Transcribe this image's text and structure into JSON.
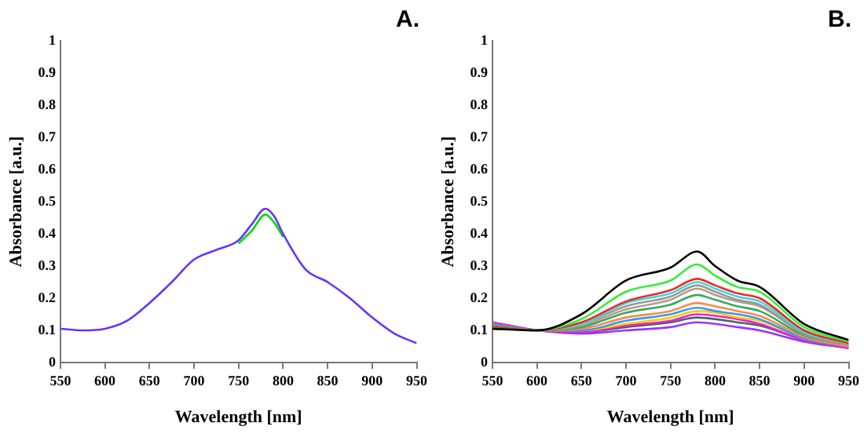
{
  "chart_data": [
    {
      "type": "line",
      "title": "A.",
      "xlabel": "Wavelength [nm]",
      "ylabel": "Absorbance [a.u.]",
      "x": [
        550,
        575,
        600,
        625,
        650,
        675,
        700,
        725,
        750,
        765,
        780,
        790,
        800,
        825,
        850,
        875,
        900,
        925,
        950
      ],
      "xlim": [
        550,
        950
      ],
      "xticks": [
        550,
        600,
        650,
        700,
        750,
        800,
        850,
        900,
        950
      ],
      "ylim": [
        0,
        1
      ],
      "yticks": [
        0,
        0.1,
        0.2,
        0.3,
        0.4,
        0.5,
        0.6,
        0.7,
        0.8,
        0.9,
        1
      ],
      "grid": false,
      "legend": false,
      "marker": "none",
      "line_style": "solid",
      "series": [
        {
          "color": "#6633ff",
          "values": [
            0.105,
            0.1,
            0.105,
            0.13,
            0.185,
            0.25,
            0.32,
            0.35,
            0.38,
            0.43,
            0.478,
            0.455,
            0.4,
            0.29,
            0.25,
            0.2,
            0.14,
            0.09,
            0.06
          ]
        },
        {
          "color": "#00dd00",
          "values": [
            null,
            null,
            null,
            null,
            null,
            null,
            null,
            null,
            0.37,
            0.41,
            0.46,
            0.435,
            0.39,
            null,
            null,
            null,
            null,
            null,
            null
          ]
        }
      ]
    },
    {
      "type": "line",
      "title": "B.",
      "xlabel": "Wavelength [nm]",
      "ylabel": "Absorbance [a.u.]",
      "x": [
        550,
        600,
        650,
        700,
        750,
        780,
        800,
        825,
        850,
        900,
        950
      ],
      "xlim": [
        550,
        950
      ],
      "xticks": [
        550,
        600,
        650,
        700,
        750,
        800,
        850,
        900,
        950
      ],
      "ylim": [
        0,
        1
      ],
      "yticks": [
        0,
        0.1,
        0.2,
        0.3,
        0.4,
        0.5,
        0.6,
        0.7,
        0.8,
        0.9,
        1
      ],
      "grid": false,
      "legend": false,
      "marker": "none",
      "line_style": "solid",
      "series": [
        {
          "color": "#000000",
          "values": [
            0.105,
            0.1,
            0.15,
            0.255,
            0.295,
            0.345,
            0.3,
            0.255,
            0.235,
            0.12,
            0.07
          ]
        },
        {
          "color": "#33ee33",
          "values": [
            0.105,
            0.1,
            0.135,
            0.22,
            0.255,
            0.305,
            0.27,
            0.235,
            0.22,
            0.11,
            0.065
          ]
        },
        {
          "color": "#ff2222",
          "values": [
            0.11,
            0.1,
            0.125,
            0.19,
            0.225,
            0.26,
            0.24,
            0.215,
            0.2,
            0.1,
            0.06
          ]
        },
        {
          "color": "#33dddd",
          "values": [
            0.11,
            0.1,
            0.12,
            0.185,
            0.215,
            0.25,
            0.23,
            0.205,
            0.19,
            0.095,
            0.06
          ]
        },
        {
          "color": "#999999",
          "values": [
            0.11,
            0.1,
            0.12,
            0.175,
            0.205,
            0.24,
            0.22,
            0.195,
            0.18,
            0.09,
            0.055
          ]
        },
        {
          "color": "#bb9988",
          "values": [
            0.11,
            0.1,
            0.115,
            0.165,
            0.195,
            0.23,
            0.21,
            0.19,
            0.175,
            0.09,
            0.055
          ]
        },
        {
          "color": "#33aa66",
          "values": [
            0.115,
            0.1,
            0.11,
            0.155,
            0.18,
            0.21,
            0.195,
            0.175,
            0.16,
            0.085,
            0.055
          ]
        },
        {
          "color": "#ff8844",
          "values": [
            0.115,
            0.1,
            0.105,
            0.14,
            0.16,
            0.185,
            0.175,
            0.16,
            0.145,
            0.08,
            0.05
          ]
        },
        {
          "color": "#3399ff",
          "values": [
            0.12,
            0.1,
            0.1,
            0.13,
            0.15,
            0.17,
            0.16,
            0.15,
            0.135,
            0.075,
            0.05
          ]
        },
        {
          "color": "#ffcc00",
          "values": [
            0.12,
            0.1,
            0.1,
            0.12,
            0.14,
            0.16,
            0.155,
            0.14,
            0.13,
            0.075,
            0.05
          ]
        },
        {
          "color": "#ee22cc",
          "values": [
            0.125,
            0.1,
            0.095,
            0.115,
            0.13,
            0.15,
            0.145,
            0.135,
            0.12,
            0.07,
            0.045
          ]
        },
        {
          "color": "#446666",
          "values": [
            0.12,
            0.1,
            0.095,
            0.11,
            0.125,
            0.14,
            0.135,
            0.125,
            0.115,
            0.07,
            0.045
          ]
        },
        {
          "color": "#9933ff",
          "values": [
            0.125,
            0.1,
            0.09,
            0.1,
            0.11,
            0.125,
            0.12,
            0.11,
            0.1,
            0.065,
            0.045
          ]
        }
      ]
    }
  ]
}
